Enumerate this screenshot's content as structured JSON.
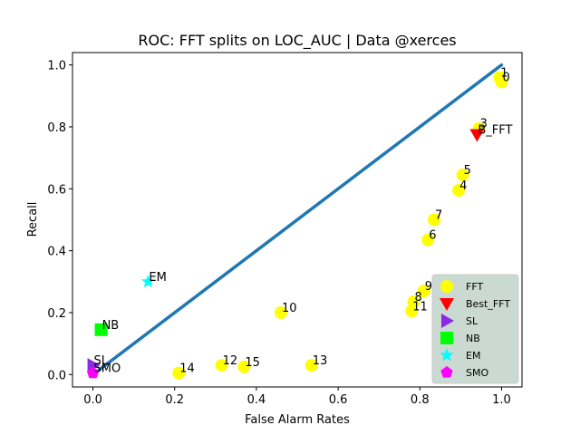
{
  "chart_data": {
    "type": "scatter",
    "title": "ROC: FFT splits on LOC_AUC  |  Data @xerces",
    "xlabel": "False Alarm Rates",
    "ylabel": "Recall",
    "xlim": [
      -0.05,
      1.05
    ],
    "ylim": [
      -0.04,
      1.04
    ],
    "xticks": [
      "0.0",
      "0.2",
      "0.4",
      "0.6",
      "0.8",
      "1.0"
    ],
    "yticks": [
      "0.0",
      "0.2",
      "0.4",
      "0.6",
      "0.8",
      "1.0"
    ],
    "grid": false,
    "legend_position": "lower-right",
    "curve": {
      "color": "#1f77b4",
      "points": [
        [
          0.0,
          0.0
        ],
        [
          1.0,
          1.0
        ]
      ]
    },
    "series": [
      {
        "name": "FFT",
        "marker": "circle",
        "color": "#ffff00",
        "points": [
          {
            "label": "0",
            "x": 1.0,
            "y": 0.945
          },
          {
            "label": "1",
            "x": 0.995,
            "y": 0.96
          },
          {
            "label": "3",
            "x": 0.945,
            "y": 0.795
          },
          {
            "label": "5",
            "x": 0.905,
            "y": 0.645
          },
          {
            "label": "4",
            "x": 0.895,
            "y": 0.595
          },
          {
            "label": "7",
            "x": 0.835,
            "y": 0.5
          },
          {
            "label": "6",
            "x": 0.82,
            "y": 0.435
          },
          {
            "label": "9",
            "x": 0.81,
            "y": 0.27
          },
          {
            "label": "8",
            "x": 0.785,
            "y": 0.235
          },
          {
            "label": "11",
            "x": 0.78,
            "y": 0.205
          },
          {
            "label": "10",
            "x": 0.46,
            "y": 0.2
          },
          {
            "label": "13",
            "x": 0.535,
            "y": 0.03
          },
          {
            "label": "12",
            "x": 0.315,
            "y": 0.03
          },
          {
            "label": "15",
            "x": 0.37,
            "y": 0.025
          },
          {
            "label": "14",
            "x": 0.21,
            "y": 0.005
          }
        ]
      },
      {
        "name": "Best_FFT",
        "marker": "triangle-down",
        "color": "#ff0000",
        "points": [
          {
            "label": "B_FFT",
            "x": 0.94,
            "y": 0.775
          }
        ]
      },
      {
        "name": "SL",
        "marker": "triangle-right",
        "color": "#8a2be2",
        "points": [
          {
            "label": "SL",
            "x": 0.0,
            "y": 0.03
          }
        ]
      },
      {
        "name": "NB",
        "marker": "square",
        "color": "#00ff00",
        "points": [
          {
            "label": "NB",
            "x": 0.02,
            "y": 0.145
          }
        ]
      },
      {
        "name": "EM",
        "marker": "star",
        "color": "#00ffff",
        "points": [
          {
            "label": "EM",
            "x": 0.135,
            "y": 0.3
          }
        ]
      },
      {
        "name": "SMO",
        "marker": "pentagon",
        "color": "#ff00ff",
        "points": [
          {
            "label": "SMO",
            "x": 0.0,
            "y": 0.005
          }
        ]
      }
    ]
  }
}
